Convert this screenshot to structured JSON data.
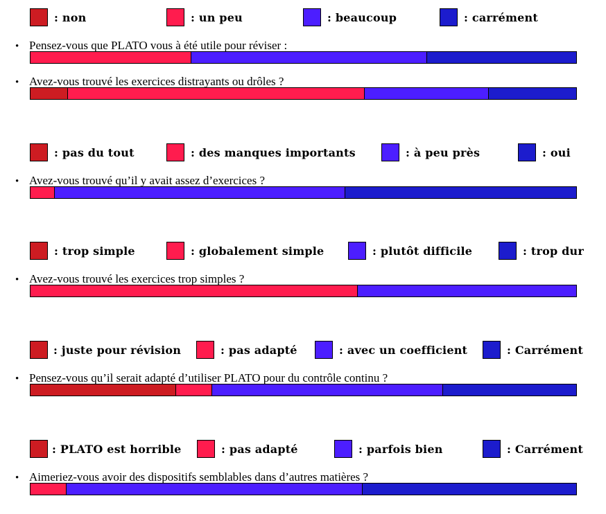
{
  "colors": {
    "level1": "#CD1C22",
    "level2": "#FF1C4E",
    "level3": "#4C1EFF",
    "level4": "#1C1CCD"
  },
  "bullet": "•",
  "chart_data": [
    {
      "type": "bar",
      "orientation": "horizontal-stacked",
      "question": "Pensez-vous que PLATO vous à été utile pour réviser :",
      "legend": [
        {
          "label": ": non",
          "color": "#CD1C22"
        },
        {
          "label": ": un peu",
          "color": "#FF1C4E"
        },
        {
          "label": ": beaucoup",
          "color": "#4C1EFF"
        },
        {
          "label": ": carrément",
          "color": "#1C1CCD"
        }
      ],
      "values": [
        0,
        29.5,
        43.2,
        27.3
      ]
    },
    {
      "type": "bar",
      "orientation": "horizontal-stacked",
      "question": "Avez-vous trouvé les exercices distrayants ou drôles ?",
      "legend": [
        {
          "label": ": non",
          "color": "#CD1C22"
        },
        {
          "label": ": un peu",
          "color": "#FF1C4E"
        },
        {
          "label": ": beaucoup",
          "color": "#4C1EFF"
        },
        {
          "label": ": carrément",
          "color": "#1C1CCD"
        }
      ],
      "values": [
        6.8,
        54.5,
        22.7,
        16.0
      ]
    },
    {
      "type": "bar",
      "orientation": "horizontal-stacked",
      "question": "Avez-vous trouvé qu’il y avait assez d’exercices ?",
      "legend": [
        {
          "label": ": pas du tout",
          "color": "#CD1C22"
        },
        {
          "label": ": des manques importants",
          "color": "#FF1C4E"
        },
        {
          "label": ": à peu près",
          "color": "#4C1EFF"
        },
        {
          "label": ": oui",
          "color": "#1C1CCD"
        }
      ],
      "values": [
        0,
        4.4,
        53.3,
        42.3
      ]
    },
    {
      "type": "bar",
      "orientation": "horizontal-stacked",
      "question": "Avez-vous trouvé les exercices trop simples ?",
      "legend": [
        {
          "label": ": trop simple",
          "color": "#CD1C22"
        },
        {
          "label": ": globalement simple",
          "color": "#FF1C4E"
        },
        {
          "label": ": plutôt difficile",
          "color": "#4C1EFF"
        },
        {
          "label": ": trop dur",
          "color": "#1C1CCD"
        }
      ],
      "values": [
        0,
        60.0,
        40.0,
        0
      ]
    },
    {
      "type": "bar",
      "orientation": "horizontal-stacked",
      "question": "Pensez-vous qu’il serait adapté d’utiliser PLATO pour du contrôle continu ?",
      "legend": [
        {
          "label": ": juste pour révision",
          "color": "#CD1C22"
        },
        {
          "label": ": pas adapté",
          "color": "#FF1C4E"
        },
        {
          "label": ": avec un coefficient",
          "color": "#4C1EFF"
        },
        {
          "label": ": Carrément",
          "color": "#1C1CCD"
        }
      ],
      "values": [
        26.7,
        6.6,
        42.3,
        24.4
      ]
    },
    {
      "type": "bar",
      "orientation": "horizontal-stacked",
      "question": "Aimeriez-vous avoir des dispositifs semblables dans d’autres matières ?",
      "legend": [
        {
          "label": ": PLATO est horrible",
          "color": "#CD1C22"
        },
        {
          "label": ": pas adapté",
          "color": "#FF1C4E"
        },
        {
          "label": ": parfois bien",
          "color": "#4C1EFF"
        },
        {
          "label": ": Carrément",
          "color": "#1C1CCD"
        }
      ],
      "values": [
        0,
        6.6,
        54.3,
        39.1
      ]
    }
  ]
}
